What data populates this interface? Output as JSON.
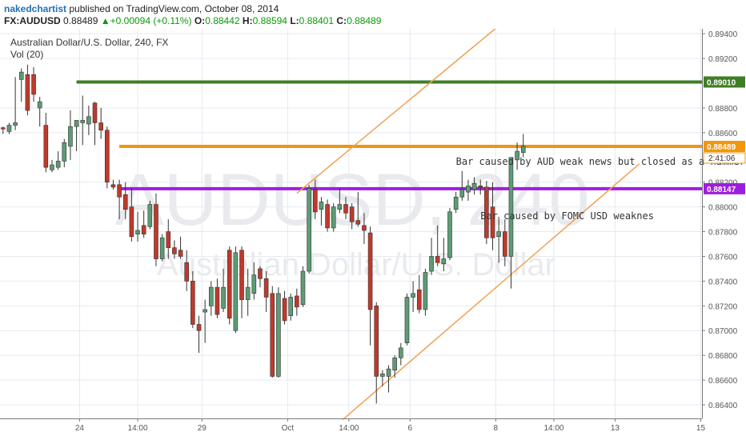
{
  "header": {
    "author": "nakedchartist",
    "published_text": "published on TradingView.com, October 08, 2014",
    "symbol": "FX:AUDUSD",
    "last": "0.88489",
    "change_arrow": "▲",
    "change": "+0.00094 (+0.11%)",
    "open_label": "O:",
    "open": "0.88442",
    "high_label": "H:",
    "high": "0.88594",
    "low_label": "L:",
    "low": "0.88401",
    "close_label": "C:",
    "close": "0.88489"
  },
  "legend": {
    "series_title": "Australian Dollar/U.S. Dollar, 240, FX",
    "volume_label": "Vol (20)"
  },
  "watermark": {
    "line1": "AUDUSD, 240",
    "line2": "Australian Dollar/U.S. Dollar"
  },
  "colors": {
    "up_candle": "#5c9c75",
    "down_candle": "#c0392b",
    "wick": "#333333",
    "resistance": "#3f7e25",
    "current": "#f0960f",
    "support": "#9d1ee0",
    "channel": "#f0a050",
    "grid": "#e4e9f0",
    "axis_text": "#555555"
  },
  "chart_data": {
    "type": "candlestick",
    "title": "Australian Dollar/U.S. Dollar, 240, FX",
    "y_ticks": [
      "0.89400",
      "0.89200",
      "0.88800",
      "0.88600",
      "0.88200",
      "0.88000",
      "0.87800",
      "0.87600",
      "0.87400",
      "0.87200",
      "0.87000",
      "0.86800",
      "0.86600",
      "0.86400"
    ],
    "x_ticks": [
      {
        "label": "24",
        "i": 12.5
      },
      {
        "label": "14:00",
        "i": 22
      },
      {
        "label": "29",
        "i": 32.5
      },
      {
        "label": "Oct",
        "i": 46.5
      },
      {
        "label": "14:00",
        "i": 56.5
      },
      {
        "label": "6",
        "i": 66.5
      },
      {
        "label": "8",
        "i": 80.5
      },
      {
        "label": "14:00",
        "i": 90
      },
      {
        "label": "13",
        "i": 100
      },
      {
        "label": "15",
        "i": 114
      }
    ],
    "ylim": [
      0.8629,
      0.8944
    ],
    "xlim": [
      -0.5,
      114.2
    ],
    "candles": [
      [
        0.8864,
        0.8865,
        0.8859,
        0.8863
      ],
      [
        0.8861,
        0.8868,
        0.8859,
        0.8866
      ],
      [
        0.8866,
        0.8905,
        0.8862,
        0.8868
      ],
      [
        0.8903,
        0.8912,
        0.8885,
        0.8909
      ],
      [
        0.8907,
        0.8915,
        0.8874,
        0.8878
      ],
      [
        0.8907,
        0.8913,
        0.8885,
        0.8891
      ],
      [
        0.888,
        0.8889,
        0.8865,
        0.8885
      ],
      [
        0.8866,
        0.8876,
        0.8828,
        0.8832
      ],
      [
        0.883,
        0.8838,
        0.8828,
        0.8834
      ],
      [
        0.8832,
        0.8845,
        0.883,
        0.8837
      ],
      [
        0.8837,
        0.8855,
        0.8832,
        0.8852
      ],
      [
        0.8849,
        0.8878,
        0.8838,
        0.8865
      ],
      [
        0.8865,
        0.887,
        0.8845,
        0.887
      ],
      [
        0.8868,
        0.889,
        0.885,
        0.887
      ],
      [
        0.8867,
        0.8882,
        0.8858,
        0.8873
      ],
      [
        0.8884,
        0.8885,
        0.885,
        0.8868
      ],
      [
        0.8868,
        0.888,
        0.8855,
        0.8862
      ],
      [
        0.8862,
        0.8865,
        0.8815,
        0.882
      ],
      [
        0.8818,
        0.8822,
        0.8814,
        0.8816
      ],
      [
        0.8818,
        0.8822,
        0.879,
        0.8808
      ],
      [
        0.881,
        0.882,
        0.879,
        0.8798
      ],
      [
        0.88,
        0.8815,
        0.8772,
        0.8776
      ],
      [
        0.8778,
        0.8796,
        0.8772,
        0.8781
      ],
      [
        0.8785,
        0.8797,
        0.8775,
        0.8778
      ],
      [
        0.8784,
        0.8805,
        0.8782,
        0.8802
      ],
      [
        0.8802,
        0.8811,
        0.8752,
        0.8758
      ],
      [
        0.8758,
        0.8778,
        0.8756,
        0.8775
      ],
      [
        0.878,
        0.879,
        0.8758,
        0.8767
      ],
      [
        0.8767,
        0.8773,
        0.8758,
        0.8762
      ],
      [
        0.8765,
        0.8776,
        0.8758,
        0.876
      ],
      [
        0.8755,
        0.8765,
        0.8732,
        0.874
      ],
      [
        0.874,
        0.8748,
        0.8702,
        0.8705
      ],
      [
        0.8705,
        0.8712,
        0.8682,
        0.87
      ],
      [
        0.8715,
        0.8725,
        0.869,
        0.8717
      ],
      [
        0.872,
        0.874,
        0.8712,
        0.8735
      ],
      [
        0.8735,
        0.8742,
        0.871,
        0.8713
      ],
      [
        0.8718,
        0.875,
        0.8715,
        0.8735
      ],
      [
        0.8765,
        0.8768,
        0.8705,
        0.871
      ],
      [
        0.87,
        0.8768,
        0.8698,
        0.8763
      ],
      [
        0.8765,
        0.8768,
        0.871,
        0.8725
      ],
      [
        0.8725,
        0.875,
        0.8712,
        0.8735
      ],
      [
        0.873,
        0.8755,
        0.8725,
        0.8745
      ],
      [
        0.875,
        0.8752,
        0.8735,
        0.8742
      ],
      [
        0.8742,
        0.8748,
        0.8715,
        0.8727
      ],
      [
        0.873,
        0.8736,
        0.8662,
        0.8663
      ],
      [
        0.8663,
        0.8735,
        0.8662,
        0.873
      ],
      [
        0.8726,
        0.8732,
        0.8705,
        0.8708
      ],
      [
        0.8712,
        0.873,
        0.8708,
        0.8727
      ],
      [
        0.8728,
        0.8734,
        0.8712,
        0.8719
      ],
      [
        0.8721,
        0.8752,
        0.8719,
        0.8748
      ],
      [
        0.8748,
        0.8818,
        0.8746,
        0.8815
      ],
      [
        0.8814,
        0.8822,
        0.879,
        0.8796
      ],
      [
        0.8798,
        0.8808,
        0.8785,
        0.8804
      ],
      [
        0.8802,
        0.8806,
        0.878,
        0.8783
      ],
      [
        0.8783,
        0.8803,
        0.878,
        0.88
      ],
      [
        0.8798,
        0.8815,
        0.8795,
        0.8802
      ],
      [
        0.8802,
        0.8808,
        0.879,
        0.8795
      ],
      [
        0.88,
        0.8803,
        0.8782,
        0.8788
      ],
      [
        0.8789,
        0.8812,
        0.8784,
        0.8786
      ],
      [
        0.8785,
        0.8795,
        0.877,
        0.8781
      ],
      [
        0.8779,
        0.8784,
        0.8688,
        0.8717
      ],
      [
        0.872,
        0.8723,
        0.8641,
        0.8663
      ],
      [
        0.8663,
        0.8668,
        0.8655,
        0.8665
      ],
      [
        0.8663,
        0.8672,
        0.865,
        0.8669
      ],
      [
        0.8668,
        0.868,
        0.8662,
        0.8678
      ],
      [
        0.8678,
        0.869,
        0.8672,
        0.8686
      ],
      [
        0.869,
        0.873,
        0.8688,
        0.8727
      ],
      [
        0.8727,
        0.874,
        0.8715,
        0.873
      ],
      [
        0.8733,
        0.8745,
        0.8714,
        0.8717
      ],
      [
        0.8717,
        0.875,
        0.8712,
        0.8747
      ],
      [
        0.8748,
        0.8775,
        0.8745,
        0.876
      ],
      [
        0.876,
        0.8785,
        0.8752,
        0.8755
      ],
      [
        0.8754,
        0.8775,
        0.8748,
        0.8758
      ],
      [
        0.8759,
        0.8799,
        0.8757,
        0.8796
      ],
      [
        0.8798,
        0.8812,
        0.8795,
        0.8808
      ],
      [
        0.8808,
        0.8829,
        0.8805,
        0.8814
      ],
      [
        0.8812,
        0.8822,
        0.8805,
        0.8817
      ],
      [
        0.8814,
        0.8824,
        0.881,
        0.8819
      ],
      [
        0.8817,
        0.8822,
        0.881,
        0.8816
      ],
      [
        0.8816,
        0.8821,
        0.877,
        0.8775
      ],
      [
        0.88,
        0.882,
        0.8765,
        0.8775
      ],
      [
        0.8776,
        0.8792,
        0.8755,
        0.878
      ],
      [
        0.878,
        0.879,
        0.8752,
        0.876
      ],
      [
        0.876,
        0.884,
        0.8734,
        0.884
      ],
      [
        0.8838,
        0.8852,
        0.883,
        0.8845
      ],
      [
        0.8844,
        0.8859,
        0.884,
        0.8849
      ]
    ],
    "horizontal_lines": [
      {
        "value": 0.8901,
        "label": "0.89010",
        "color": "#3f7e25",
        "x_start": 12
      },
      {
        "value": 0.88489,
        "label": "0.88489",
        "sublabel": "2:41:06",
        "color": "#f0960f",
        "x_start": 19
      },
      {
        "value": 0.88147,
        "label": "0.88147",
        "color": "#9d1ee0",
        "x_start": 19
      }
    ],
    "channel": [
      {
        "from": [
          48,
          0.8811
        ],
        "to": [
          80.4,
          0.8944
        ]
      },
      {
        "from": [
          55.5,
          0.8628
        ],
        "to": [
          104,
          0.8835
        ]
      }
    ],
    "annotations": [
      {
        "text": "Bar caused by AUD weak news but closed as a hammer",
        "x": 74,
        "y": 0.8834
      },
      {
        "text": "Bar caused by FOMC USD weaknes",
        "x": 78,
        "y": 0.879
      }
    ]
  }
}
